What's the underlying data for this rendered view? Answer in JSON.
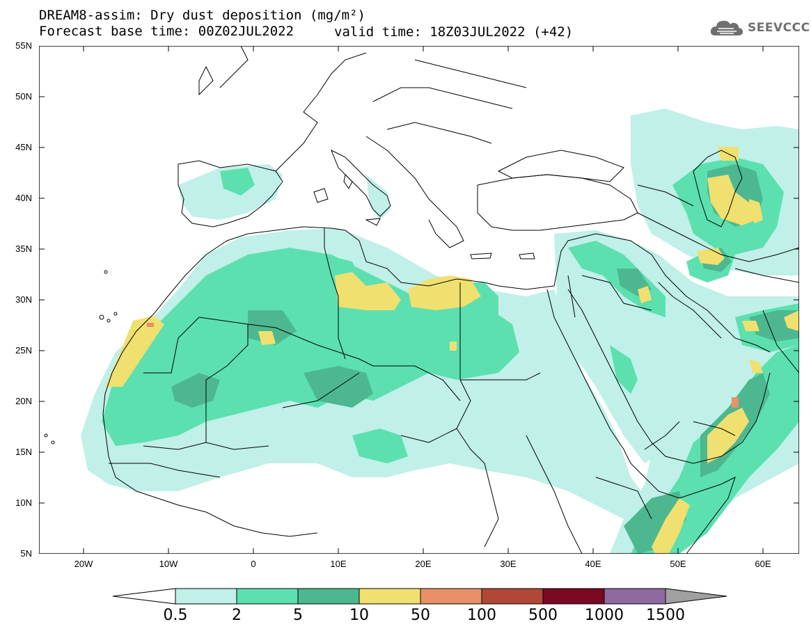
{
  "header": {
    "title": "DREAM8-assim: Dry dust deposition (mg/m²)",
    "base_time": "Forecast base time: 00Z02JUL2022",
    "valid_time": "valid time: 18Z03JUL2022 (+42)"
  },
  "logo": {
    "text": "SEEVCCC",
    "icon": "cloud-icon"
  },
  "axes": {
    "lat_labels": [
      "55N",
      "50N",
      "45N",
      "40N",
      "35N",
      "30N",
      "25N",
      "20N",
      "15N",
      "10N",
      "5N"
    ],
    "lon_labels": [
      "20W",
      "10W",
      "0",
      "10E",
      "20E",
      "30E",
      "40E",
      "50E",
      "60E"
    ],
    "lat_range": [
      5,
      55
    ],
    "lon_range": [
      -25,
      65
    ]
  },
  "legend": {
    "labels": [
      "0.5",
      "2",
      "5",
      "10",
      "50",
      "100",
      "500",
      "1000",
      "1500"
    ],
    "colors": [
      "#c0f0e8",
      "#5ce0b0",
      "#4db890",
      "#f0e070",
      "#e89068",
      "#b04838",
      "#7a0820",
      "#8e6aa0"
    ],
    "under_color": "#ffffff",
    "over_color": "#a0a0a0"
  },
  "colors": {
    "level1": "#c0f0e8",
    "level2": "#5ce0b0",
    "level3": "#4db890",
    "level4": "#f0e070",
    "level5": "#e89068"
  }
}
